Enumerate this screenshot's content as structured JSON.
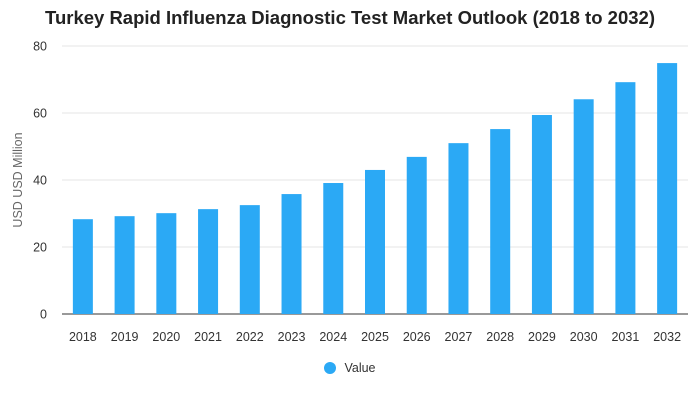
{
  "chart_data": {
    "type": "bar",
    "title": "Turkey Rapid Influenza Diagnostic Test Market Outlook (2018 to 2032)",
    "xlabel": "",
    "ylabel": "USD USD Million",
    "categories": [
      "2018",
      "2019",
      "2020",
      "2021",
      "2022",
      "2023",
      "2024",
      "2025",
      "2026",
      "2027",
      "2028",
      "2029",
      "2030",
      "2031",
      "2032"
    ],
    "series": [
      {
        "name": "Value",
        "values": [
          28.3,
          29.2,
          30.1,
          31.3,
          32.5,
          35.8,
          39.1,
          43.0,
          46.9,
          51.0,
          55.2,
          59.4,
          64.1,
          69.2,
          74.9
        ],
        "color": "#2BA9F5"
      }
    ],
    "ylim": [
      0,
      80
    ],
    "yticks": [
      0,
      20,
      40,
      60,
      80
    ],
    "grid": true,
    "legend": "bottom-center"
  }
}
